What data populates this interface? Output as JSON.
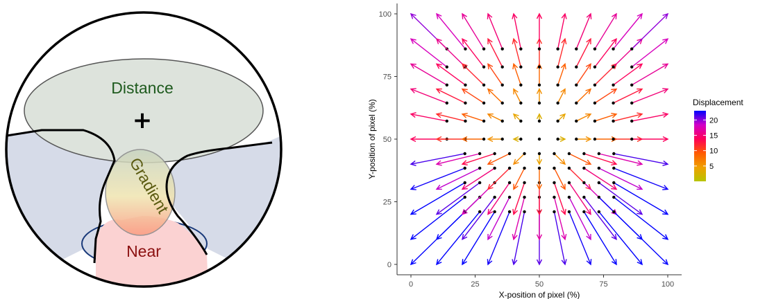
{
  "lens_diagram": {
    "zones": [
      {
        "key": "distance",
        "label": "Distance",
        "color": "#1e5a1e"
      },
      {
        "key": "gradient",
        "label": "Gradient",
        "color": "#5a5a10"
      },
      {
        "key": "near",
        "label": "Near",
        "color": "#8b1010"
      }
    ],
    "center_mark": "+",
    "colors": {
      "distance_fill": "#dde3dc",
      "side_fill": "#d6dbe8",
      "near_fill": "#fbd2d2",
      "outline": "#000000"
    }
  },
  "chart_data": {
    "type": "quiver",
    "title": "",
    "xlabel": "X-position of pixel (%)",
    "ylabel": "Y-position of pixel (%)",
    "xlim": [
      0,
      100
    ],
    "ylim": [
      0,
      100
    ],
    "x_ticks": [
      0,
      25,
      50,
      75,
      100
    ],
    "y_ticks": [
      0,
      25,
      50,
      75,
      100
    ],
    "grid_positions": [
      0,
      10,
      20,
      30,
      40,
      50,
      60,
      70,
      80,
      90,
      100
    ],
    "grid": false,
    "legend": {
      "title": "Displacement",
      "placement": "right",
      "ticks": [
        5,
        10,
        15,
        20
      ],
      "range": [
        0,
        23
      ],
      "colors": [
        "#b7c400",
        "#f0a000",
        "#ff5a00",
        "#ff0058",
        "#d200c8",
        "#0000ff"
      ]
    },
    "field": {
      "description_key": "radial",
      "center": [
        50,
        50
      ],
      "upper_gain": 0.28,
      "lower_gain": 0.42
    }
  }
}
